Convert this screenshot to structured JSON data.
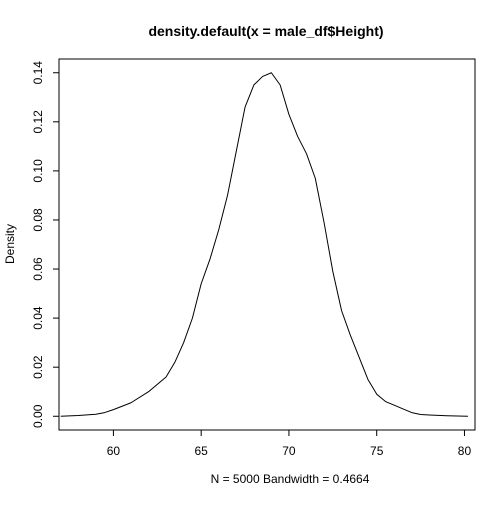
{
  "chart_data": {
    "type": "line",
    "title": "density.default(x = male_df$Height)",
    "xlabel": "N = 5000   Bandwidth = 0.4664",
    "ylabel": "Density",
    "xlim": [
      56.9,
      80.6
    ],
    "ylim": [
      -0.0056,
      0.1456
    ],
    "xticks": [
      60,
      65,
      70,
      75,
      80
    ],
    "yticks": [
      0.0,
      0.02,
      0.04,
      0.06,
      0.08,
      0.1,
      0.12,
      0.14
    ],
    "xtick_labels": [
      "60",
      "65",
      "70",
      "75",
      "80"
    ],
    "ytick_labels": [
      "0.00",
      "0.02",
      "0.04",
      "0.06",
      "0.08",
      "0.10",
      "0.12",
      "0.14"
    ],
    "grid": false,
    "legend": "none",
    "line_color": "#000000",
    "series": [
      {
        "x": [
          57.0,
          58.0,
          59.0,
          59.5,
          60.0,
          61.0,
          62.0,
          63.0,
          63.5,
          64.0,
          64.5,
          65.0,
          65.5,
          66.0,
          66.5,
          67.0,
          67.5,
          68.0,
          68.5,
          69.0,
          69.5,
          70.0,
          70.5,
          71.0,
          71.5,
          72.0,
          72.5,
          73.0,
          73.5,
          74.0,
          74.5,
          75.0,
          75.5,
          76.0,
          76.5,
          77.0,
          77.5,
          78.0,
          79.0,
          80.2
        ],
        "y": [
          0.0,
          0.0003,
          0.0008,
          0.0015,
          0.0027,
          0.0055,
          0.01,
          0.016,
          0.022,
          0.03,
          0.04,
          0.054,
          0.064,
          0.076,
          0.09,
          0.108,
          0.126,
          0.135,
          0.1385,
          0.14,
          0.135,
          0.123,
          0.114,
          0.107,
          0.097,
          0.079,
          0.059,
          0.043,
          0.033,
          0.024,
          0.015,
          0.009,
          0.006,
          0.0045,
          0.003,
          0.0015,
          0.0007,
          0.0005,
          0.0002,
          0.0
        ]
      }
    ]
  }
}
